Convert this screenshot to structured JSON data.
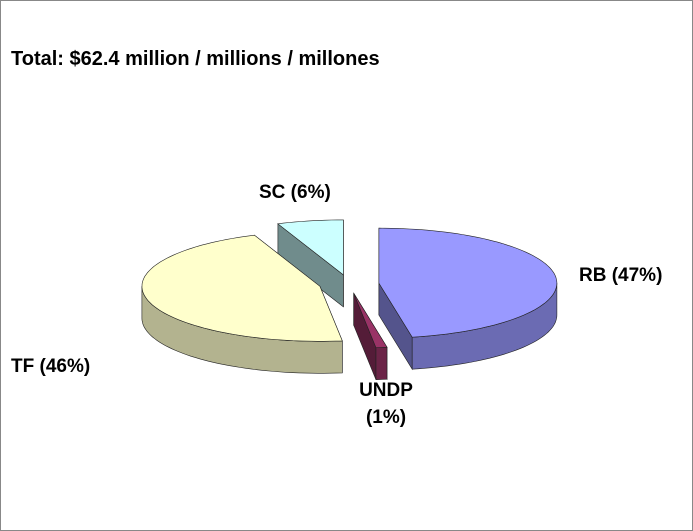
{
  "chart_data": {
    "type": "pie3d",
    "title": "Total: $62.4 million / millions / millones",
    "values": [
      47,
      1,
      46,
      6
    ],
    "value_labels": [
      "RB (47%)",
      "UNDP (1%)",
      "TF (46%)",
      "SC (6%)"
    ],
    "colors": [
      "#9999ff",
      "#993366",
      "#ffffcc",
      "#ccffff"
    ]
  }
}
